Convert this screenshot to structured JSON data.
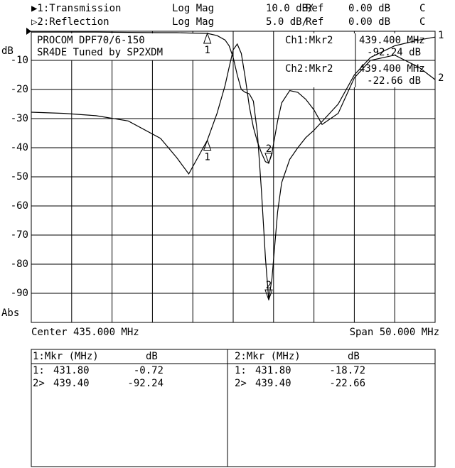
{
  "header": {
    "rows": [
      [
        "▶1:Transmission",
        "Log Mag",
        "10.0 dB/",
        "Ref",
        "0.00 dB",
        "C"
      ],
      [
        "▷2:Reflection",
        "Log Mag",
        "5.0 dB/",
        "Ref",
        "0.00 dB",
        "C"
      ]
    ]
  },
  "chart_data": {
    "type": "line",
    "title": [
      "PROCOM DPF70/6-150",
      "SR4DE Tuned by SP2XDM"
    ],
    "ylabel": "dB",
    "format_label": "Abs",
    "center_label": "Center 435.000 MHz",
    "span_label": "Span 50.000 MHz",
    "readouts": [
      {
        "label": "Ch1:Mkr2",
        "freq": "439.400 MHz",
        "value": "-92.24 dB"
      },
      {
        "label": "Ch2:Mkr2",
        "freq": "439.400 MHz",
        "value": "-22.66 dB"
      }
    ],
    "xlim": [
      410,
      460
    ],
    "ylim": [
      -100,
      0
    ],
    "y2lim": [
      -50,
      0
    ],
    "yticks": [
      -10,
      -20,
      -30,
      -40,
      -50,
      -60,
      -70,
      -80,
      -90
    ],
    "grid": true,
    "x": [
      410,
      414,
      418,
      422,
      426,
      428,
      429.5,
      431.8,
      433,
      434,
      434.5,
      435,
      435.5,
      436,
      436.5,
      437,
      437.5,
      438,
      438.5,
      439,
      439.4,
      439.8,
      440.5,
      441,
      442,
      443,
      444,
      445,
      446,
      448,
      450,
      452,
      455,
      458,
      460
    ],
    "series": [
      {
        "name": "Transmission",
        "label": "1",
        "color": "#000000",
        "values": [
          -0.3,
          -0.3,
          -0.3,
          -0.4,
          -0.5,
          -0.5,
          -0.6,
          -0.72,
          -1.5,
          -3,
          -5,
          -9,
          -15,
          -20,
          -21,
          -21.5,
          -24,
          -35,
          -55,
          -78,
          -92.24,
          -85,
          -62,
          -52,
          -44,
          -40,
          -36.5,
          -34,
          -31,
          -25,
          -15,
          -9,
          -5,
          -3,
          -2
        ],
        "markers": [
          {
            "label": "1",
            "x": 431.8
          },
          {
            "label": "2",
            "x": 439.4
          }
        ]
      },
      {
        "name": "Reflection",
        "label": "2",
        "color": "#000000",
        "axis": "y2",
        "values": [
          -13.9,
          -14.1,
          -14.5,
          -15.4,
          -18.4,
          -21.7,
          -24.5,
          -18.72,
          -14.1,
          -9.3,
          -6.2,
          -3.2,
          -2.2,
          -3.8,
          -8,
          -12.9,
          -16.5,
          -19,
          -20.9,
          -22.4,
          -22.66,
          -20.9,
          -15.4,
          -12.3,
          -10.2,
          -10.5,
          -11.7,
          -13.5,
          -16,
          -14.1,
          -8,
          -5,
          -4.1,
          -6.2,
          -8.3
        ],
        "markers": [
          {
            "label": "1",
            "x": 431.8
          },
          {
            "label": "2",
            "x": 439.4
          }
        ]
      }
    ]
  },
  "marker_tables": [
    {
      "header": [
        "1:Mkr (MHz)",
        "dB"
      ],
      "rows": [
        [
          "1:",
          "431.80",
          "-0.72"
        ],
        [
          "2>",
          "439.40",
          "-92.24"
        ]
      ]
    },
    {
      "header": [
        "2:Mkr (MHz)",
        "dB"
      ],
      "rows": [
        [
          "1:",
          "431.80",
          "-18.72"
        ],
        [
          "2>",
          "439.40",
          "-22.66"
        ]
      ]
    }
  ]
}
